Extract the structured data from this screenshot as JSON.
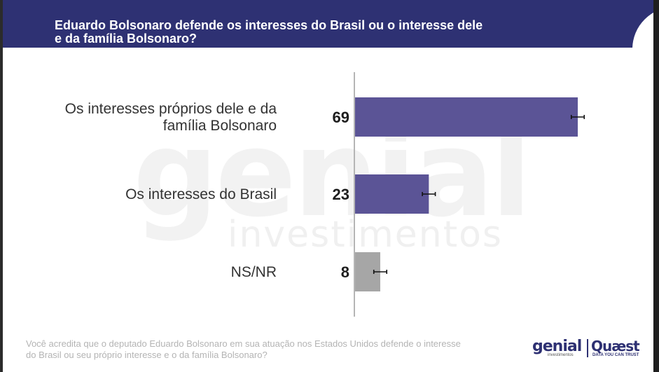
{
  "title_lines": [
    "Eduardo Bolsonaro defende os interesses do Brasil ou o interesse dele",
    "e da família Bolsonaro?"
  ],
  "footnote_lines": [
    "Você acredita que o deputado Eduardo Bolsonaro em sua atuação nos Estados Unidos defende o interesse",
    "do Brasil ou seu próprio interesse e o da família Bolsonaro?"
  ],
  "watermark": {
    "big": "genial",
    "small": "investimentos"
  },
  "logos": {
    "genial": "genial",
    "genial_sub": "investimentos",
    "quaest": "Quæst",
    "quaest_sub": "DATA YOU CAN TRUST"
  },
  "colors": {
    "primary": "#5b5496",
    "neutral": "#a6a6a6",
    "header": "#2e3173"
  },
  "chart_data": {
    "type": "bar",
    "orientation": "horizontal",
    "categories": [
      [
        "Os interesses próprios dele e da",
        "família Bolsonaro"
      ],
      [
        "Os interesses do Brasil"
      ],
      [
        "NS/NR"
      ]
    ],
    "values": [
      69,
      23,
      8
    ],
    "value_labels": [
      "69",
      "23",
      "8"
    ],
    "bar_colors": [
      "#5b5496",
      "#5b5496",
      "#a6a6a6"
    ],
    "error_bar": 2,
    "xlim": [
      0,
      70
    ],
    "grid": false,
    "legend": "none"
  }
}
